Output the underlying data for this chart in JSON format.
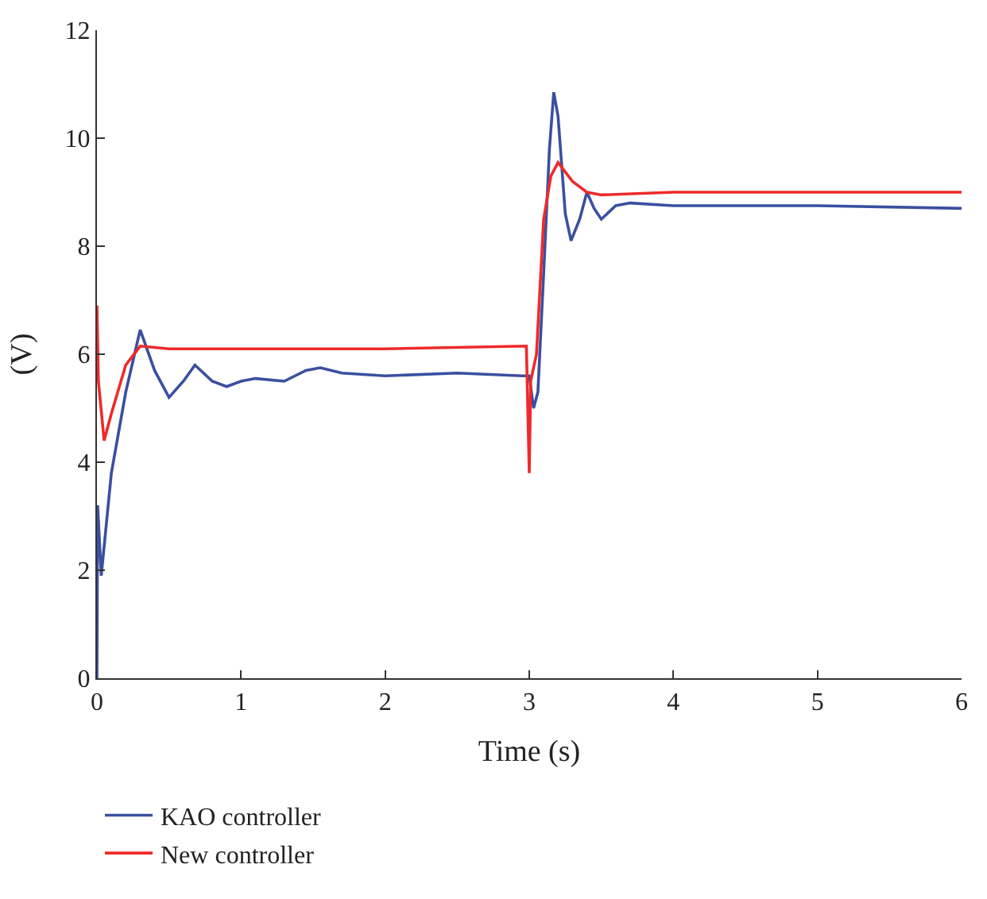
{
  "chart_data": {
    "type": "line",
    "xlabel": "Time (s)",
    "ylabel": "(V)",
    "xlim": [
      0,
      6
    ],
    "ylim": [
      0,
      12
    ],
    "xticks": [
      0,
      1,
      2,
      3,
      4,
      5,
      6
    ],
    "yticks": [
      0,
      2,
      4,
      6,
      8,
      10,
      12
    ],
    "legend": "bottom",
    "marker": "none",
    "line_style": "solid",
    "series": [
      {
        "name": "KAO controller",
        "color": "#3a4fa0",
        "x": [
          0,
          0.005,
          0.03,
          0.1,
          0.2,
          0.3,
          0.4,
          0.5,
          0.6,
          0.68,
          0.8,
          0.9,
          1.0,
          1.1,
          1.3,
          1.45,
          1.55,
          1.7,
          2.0,
          2.5,
          2.95,
          3.0,
          3.03,
          3.06,
          3.1,
          3.14,
          3.17,
          3.2,
          3.25,
          3.29,
          3.35,
          3.4,
          3.45,
          3.5,
          3.6,
          3.7,
          4.0,
          5.0,
          6.0
        ],
        "values": [
          0,
          3.2,
          1.9,
          3.8,
          5.3,
          6.45,
          5.7,
          5.2,
          5.5,
          5.8,
          5.5,
          5.4,
          5.5,
          5.55,
          5.5,
          5.7,
          5.75,
          5.65,
          5.6,
          5.65,
          5.6,
          5.6,
          5.0,
          5.3,
          7.5,
          9.8,
          10.85,
          10.4,
          8.6,
          8.1,
          8.5,
          9.0,
          8.7,
          8.5,
          8.75,
          8.8,
          8.75,
          8.75,
          8.7
        ]
      },
      {
        "name": "New controller",
        "color": "#ee2a2a",
        "x": [
          0,
          0.01,
          0.05,
          0.1,
          0.2,
          0.3,
          0.5,
          1,
          2,
          2.98,
          3.0,
          3.01,
          3.05,
          3.1,
          3.15,
          3.2,
          3.3,
          3.4,
          3.5,
          4,
          5,
          6
        ],
        "values": [
          6.9,
          5.5,
          4.4,
          4.9,
          5.8,
          6.15,
          6.1,
          6.1,
          6.1,
          6.15,
          3.8,
          5.5,
          6.0,
          8.5,
          9.3,
          9.55,
          9.2,
          9.0,
          8.95,
          9.0,
          9.0,
          9.0
        ]
      }
    ]
  }
}
